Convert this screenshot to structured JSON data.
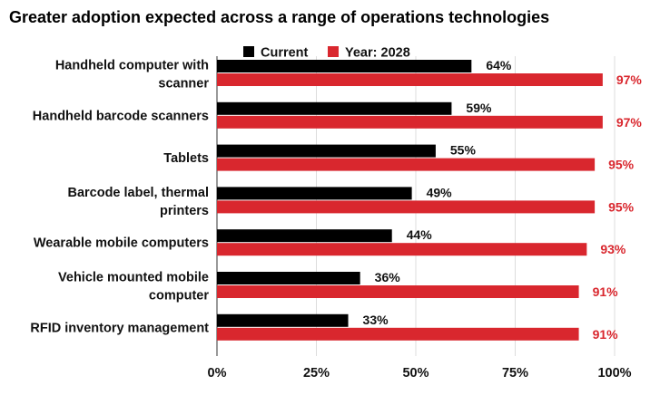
{
  "colors": {
    "current": "#000000",
    "future": "#d9272e",
    "grid": "#dddddd"
  },
  "chart_data": {
    "type": "bar",
    "orientation": "horizontal",
    "title": "Greater adoption expected across a range of operations technologies",
    "categories": [
      [
        "Handheld computer with",
        "scanner"
      ],
      [
        "Handheld barcode scanners"
      ],
      [
        "Tablets"
      ],
      [
        "Barcode label, thermal",
        "printers"
      ],
      [
        "Wearable mobile computers"
      ],
      [
        "Vehicle mounted mobile",
        "computer"
      ],
      [
        "RFID inventory management"
      ]
    ],
    "series": [
      {
        "name": "Current",
        "values": [
          64,
          59,
          55,
          49,
          44,
          36,
          33
        ]
      },
      {
        "name": "Year: 2028",
        "values": [
          97,
          97,
          95,
          95,
          93,
          91,
          91
        ]
      }
    ],
    "xlim": [
      0,
      100
    ],
    "xticks": [
      0,
      25,
      50,
      75,
      100
    ],
    "tick_suffix": "%",
    "value_suffix": "%",
    "legend_position": "top",
    "grid": true
  }
}
